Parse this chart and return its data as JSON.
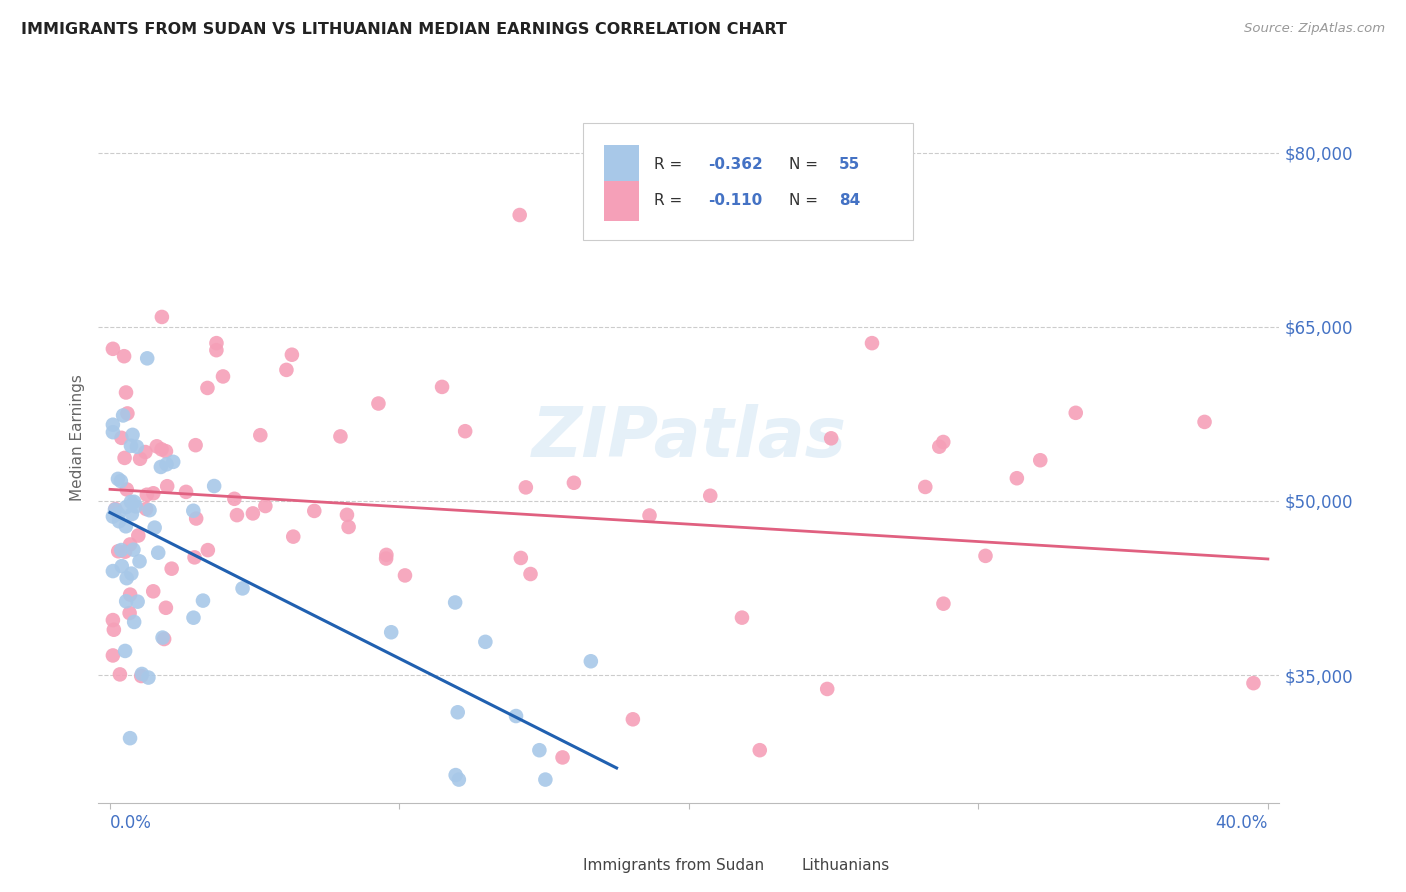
{
  "title": "IMMIGRANTS FROM SUDAN VS LITHUANIAN MEDIAN EARNINGS CORRELATION CHART",
  "source": "Source: ZipAtlas.com",
  "ylabel": "Median Earnings",
  "y_ticks": [
    35000,
    50000,
    65000,
    80000
  ],
  "y_tick_labels": [
    "$35,000",
    "$50,000",
    "$65,000",
    "$80,000"
  ],
  "xlim": [
    0.0,
    0.4
  ],
  "ylim": [
    25000,
    85000
  ],
  "color_sudan": "#a8c8e8",
  "color_lithuanian": "#f5a0b8",
  "color_blue": "#2060b0",
  "color_pink": "#e06080",
  "color_text_blue": "#4472c4",
  "color_grid": "#cccccc",
  "watermark": "ZIPatlas",
  "sudan_trendline_x": [
    0.0,
    0.175
  ],
  "sudan_trendline_y": [
    49000,
    27000
  ],
  "lith_trendline_x": [
    0.0,
    0.4
  ],
  "lith_trendline_y": [
    51000,
    45000
  ],
  "legend_r1": "R = -0.362",
  "legend_n1": "N = 55",
  "legend_r2": "R =  -0.110",
  "legend_n2": "N = 84"
}
